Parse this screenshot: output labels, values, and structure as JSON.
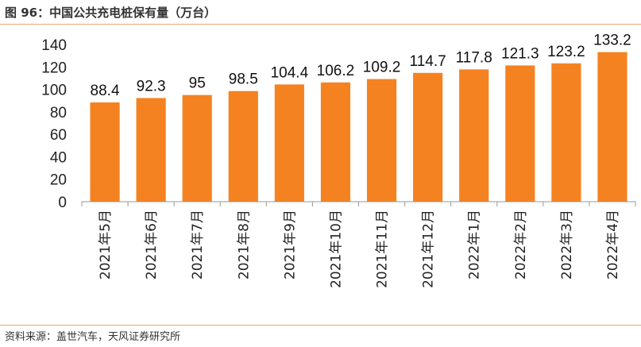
{
  "header": {
    "title": "图 96：中国公共充电桩保有量（万台）"
  },
  "footer": {
    "source": "资料来源：盖世汽车，天风证券研究所"
  },
  "chart_data": {
    "type": "bar",
    "title": "图 96：中国公共充电桩保有量（万台）",
    "categories": [
      "2021年5月",
      "2021年6月",
      "2021年7月",
      "2021年8月",
      "2021年9月",
      "2021年10月",
      "2021年11月",
      "2021年12月",
      "2022年1月",
      "2022年2月",
      "2022年3月",
      "2022年4月"
    ],
    "values": [
      88.4,
      92.3,
      95,
      98.5,
      104.4,
      106.2,
      109.2,
      114.7,
      117.8,
      121.3,
      123.2,
      133.2
    ],
    "data_labels": [
      "88.4",
      "92.3",
      "95",
      "98.5",
      "104.4",
      "106.2",
      "109.2",
      "114.7",
      "117.8",
      "121.3",
      "123.2",
      "133.2"
    ],
    "yticks": [
      0,
      20,
      40,
      60,
      80,
      100,
      120,
      140
    ],
    "ylim": [
      0,
      140
    ],
    "bar_color": "#f58220",
    "grid": false,
    "legend": "none"
  }
}
